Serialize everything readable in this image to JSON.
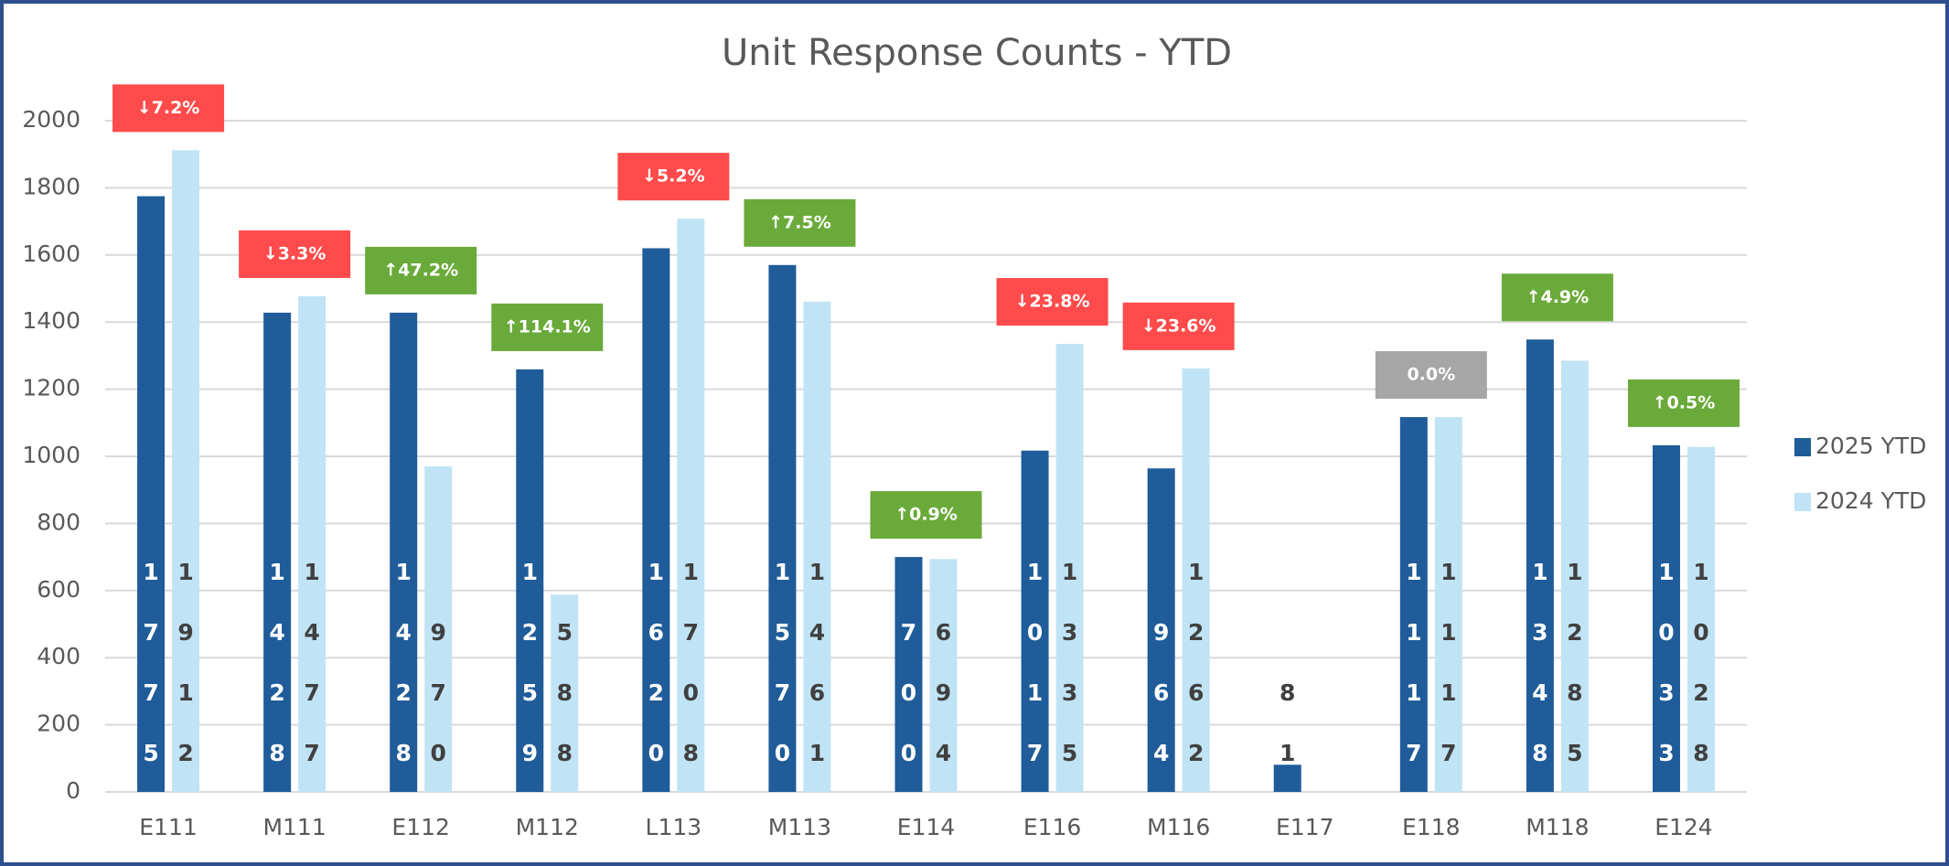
{
  "chart_data": {
    "type": "bar",
    "title": "Unit Response Counts - YTD",
    "categories": [
      "E111",
      "M111",
      "E112",
      "M112",
      "L113",
      "M113",
      "E114",
      "E116",
      "M116",
      "E117",
      "E118",
      "M118",
      "E124"
    ],
    "series": [
      {
        "name": "2025 YTD",
        "color": "#1f5c99",
        "label_color": "#ffffff",
        "values": [
          1775,
          1428,
          1428,
          1259,
          1620,
          1570,
          700,
          1017,
          964,
          81,
          1117,
          1348,
          1033
        ]
      },
      {
        "name": "2024 YTD",
        "color": "#c0e4f5",
        "label_color": "#404040",
        "values": [
          1912,
          1477,
          970,
          588,
          1708,
          1461,
          694,
          1335,
          1262,
          null,
          1117,
          1285,
          1028
        ]
      }
    ],
    "change_labels": [
      "↓7.2%",
      "↓3.3%",
      "↑47.2%",
      "↑114.1%",
      "↓5.2%",
      "↑7.5%",
      "↑0.9%",
      "↓23.8%",
      "↓23.6%",
      null,
      "0.0%",
      "↑4.9%",
      "↑0.5%"
    ],
    "change_colors": [
      "#ff4b4b",
      "#ff4b4b",
      "#6aaa3a",
      "#6aaa3a",
      "#ff4b4b",
      "#6aaa3a",
      "#6aaa3a",
      "#ff4b4b",
      "#ff4b4b",
      null,
      "#a6a6a6",
      "#6aaa3a",
      "#6aaa3a"
    ],
    "ylim": [
      0,
      2000
    ],
    "yticks": [
      0,
      200,
      400,
      600,
      800,
      1000,
      1200,
      1400,
      1600,
      1800,
      2000
    ],
    "grid": true,
    "legend": "right"
  }
}
